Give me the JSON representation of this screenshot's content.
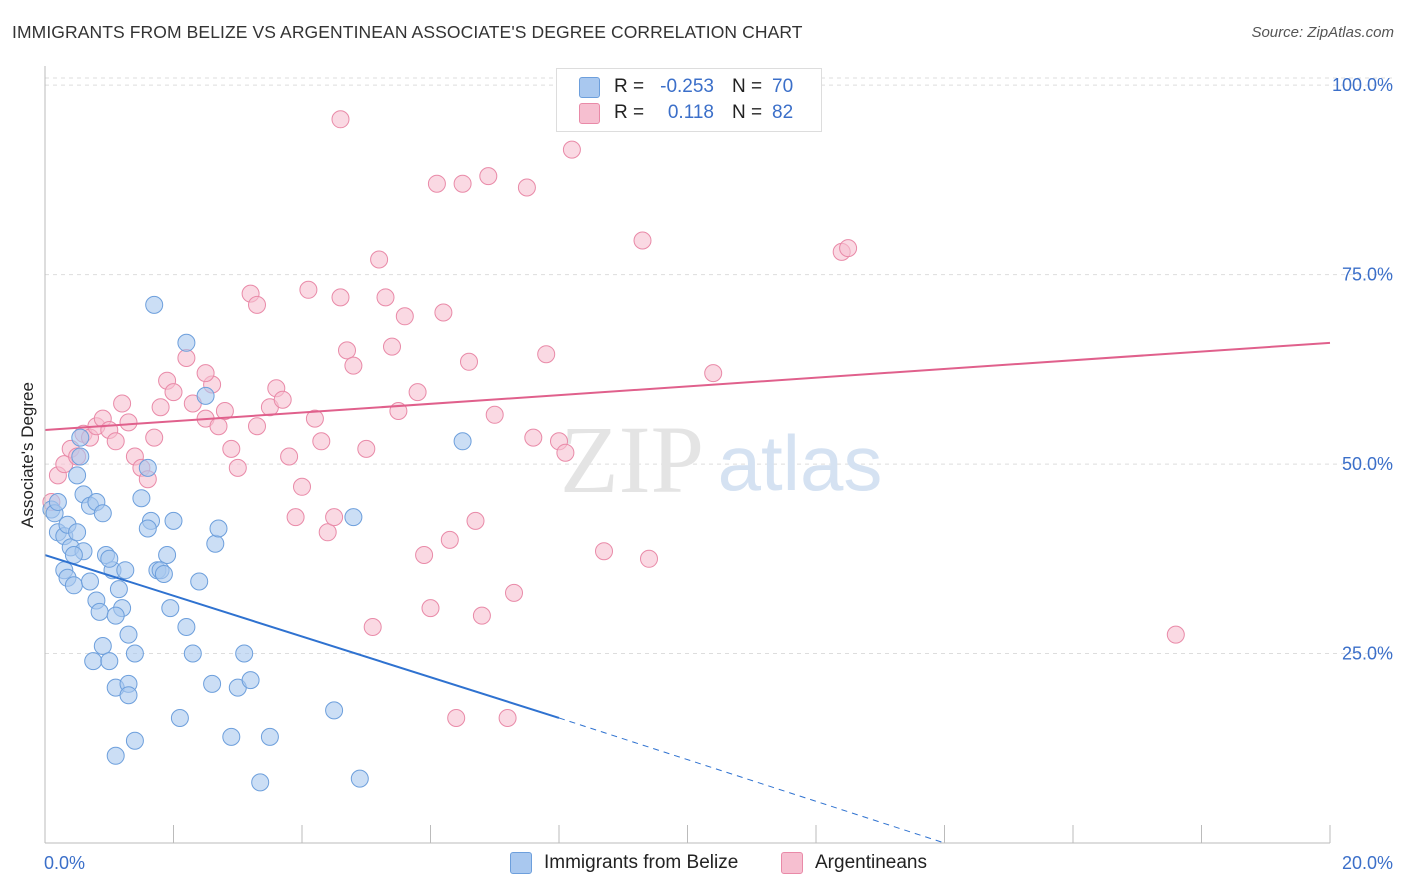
{
  "title": "IMMIGRANTS FROM BELIZE VS ARGENTINEAN ASSOCIATE'S DEGREE CORRELATION CHART",
  "source": "Source: ZipAtlas.com",
  "watermark": {
    "zip": "ZIP",
    "atlas": "atlas"
  },
  "legend_top": {
    "rows": [
      {
        "r_label": "R =",
        "r_value": "-0.253",
        "n_label": "N =",
        "n_value": "70"
      },
      {
        "r_label": "R =",
        "r_value": "0.118",
        "n_label": "N =",
        "n_value": "82"
      }
    ]
  },
  "legend_bottom": [
    "Immigrants from Belize",
    "Argentineans"
  ],
  "colors": {
    "blue_fill": "#a9c8ef",
    "blue_stroke": "#6d9fdc",
    "blue_line": "#2f72d0",
    "pink_fill": "#f6bfd0",
    "pink_stroke": "#e98aa8",
    "pink_line": "#e0608c",
    "tick_label": "#3b6fc9",
    "grid": "#dddddd"
  },
  "chart_data": {
    "type": "scatter",
    "title": "IMMIGRANTS FROM BELIZE VS ARGENTINEAN ASSOCIATE'S DEGREE CORRELATION CHART",
    "xlabel": "",
    "ylabel": "Associate's Degree",
    "xlim": [
      0,
      20
    ],
    "ylim": [
      0,
      102
    ],
    "x_tick_labels": [
      "0.0%",
      "20.0%"
    ],
    "y_ticks": [
      25,
      50,
      75,
      100
    ],
    "y_tick_labels": [
      "25.0%",
      "50.0%",
      "75.0%",
      "100.0%"
    ],
    "grid": true,
    "series": [
      {
        "name": "Immigrants from Belize",
        "color": "#a9c8ef",
        "R": -0.253,
        "N": 70,
        "trend": {
          "x0": 0,
          "y0": 38,
          "x1": 8,
          "y1": 16.5,
          "dash_to_x": 14,
          "dash_to_y": 0
        },
        "points": [
          [
            0.1,
            44
          ],
          [
            0.15,
            43.5
          ],
          [
            0.2,
            41
          ],
          [
            0.3,
            40.5
          ],
          [
            0.35,
            42
          ],
          [
            0.4,
            39
          ],
          [
            0.5,
            41
          ],
          [
            0.6,
            38.5
          ],
          [
            0.2,
            45
          ],
          [
            0.3,
            36
          ],
          [
            0.35,
            35
          ],
          [
            0.45,
            34
          ],
          [
            0.5,
            48.5
          ],
          [
            0.6,
            46
          ],
          [
            0.7,
            44.5
          ],
          [
            0.8,
            45
          ],
          [
            0.9,
            43.5
          ],
          [
            0.55,
            53.5
          ],
          [
            0.7,
            34.5
          ],
          [
            0.8,
            32
          ],
          [
            0.85,
            30.5
          ],
          [
            0.75,
            24
          ],
          [
            0.9,
            26
          ],
          [
            1.0,
            24
          ],
          [
            1.1,
            20.5
          ],
          [
            0.95,
            38
          ],
          [
            1.05,
            36
          ],
          [
            1.15,
            33.5
          ],
          [
            1.2,
            31
          ],
          [
            1.1,
            30
          ],
          [
            1.3,
            27.5
          ],
          [
            1.0,
            37.5
          ],
          [
            1.25,
            36
          ],
          [
            1.3,
            21
          ],
          [
            1.4,
            25
          ],
          [
            1.5,
            45.5
          ],
          [
            1.6,
            49.5
          ],
          [
            1.1,
            11.5
          ],
          [
            1.4,
            13.5
          ],
          [
            1.7,
            71
          ],
          [
            1.65,
            42.5
          ],
          [
            1.75,
            36
          ],
          [
            1.8,
            36
          ],
          [
            1.9,
            38
          ],
          [
            2.0,
            42.5
          ],
          [
            2.1,
            16.5
          ],
          [
            2.2,
            28.5
          ],
          [
            2.3,
            25
          ],
          [
            2.4,
            34.5
          ],
          [
            2.5,
            59
          ],
          [
            2.6,
            21
          ],
          [
            2.65,
            39.5
          ],
          [
            2.7,
            41.5
          ],
          [
            2.9,
            14
          ],
          [
            3.0,
            20.5
          ],
          [
            3.1,
            25
          ],
          [
            3.2,
            21.5
          ],
          [
            3.35,
            8
          ],
          [
            3.5,
            14
          ],
          [
            4.5,
            17.5
          ],
          [
            4.9,
            8.5
          ],
          [
            4.8,
            43
          ],
          [
            6.5,
            53
          ],
          [
            2.2,
            66
          ],
          [
            1.6,
            41.5
          ],
          [
            1.85,
            35.5
          ],
          [
            1.3,
            19.5
          ],
          [
            0.55,
            51
          ],
          [
            0.45,
            38
          ],
          [
            1.95,
            31
          ]
        ]
      },
      {
        "name": "Argentineans",
        "color": "#f6bfd0",
        "R": 0.118,
        "N": 82,
        "trend": {
          "x0": 0,
          "y0": 54.5,
          "x1": 20,
          "y1": 66
        },
        "points": [
          [
            0.1,
            45
          ],
          [
            0.2,
            48.5
          ],
          [
            0.3,
            50
          ],
          [
            0.4,
            52
          ],
          [
            0.5,
            51
          ],
          [
            0.6,
            54
          ],
          [
            0.7,
            53.5
          ],
          [
            0.8,
            55
          ],
          [
            0.9,
            56
          ],
          [
            1.0,
            54.5
          ],
          [
            1.1,
            53
          ],
          [
            1.2,
            58
          ],
          [
            1.3,
            55.5
          ],
          [
            1.4,
            51
          ],
          [
            1.5,
            49.5
          ],
          [
            1.6,
            48
          ],
          [
            1.7,
            53.5
          ],
          [
            1.8,
            57.5
          ],
          [
            1.9,
            61
          ],
          [
            2.0,
            59.5
          ],
          [
            2.2,
            64
          ],
          [
            2.3,
            58
          ],
          [
            2.5,
            56
          ],
          [
            2.6,
            60.5
          ],
          [
            2.7,
            55
          ],
          [
            2.8,
            57
          ],
          [
            2.9,
            52
          ],
          [
            3.0,
            49.5
          ],
          [
            3.2,
            72.5
          ],
          [
            3.3,
            71
          ],
          [
            3.5,
            57.5
          ],
          [
            3.6,
            60
          ],
          [
            3.7,
            58.5
          ],
          [
            3.8,
            51
          ],
          [
            3.9,
            43
          ],
          [
            4.0,
            47
          ],
          [
            4.1,
            73
          ],
          [
            4.2,
            56
          ],
          [
            4.3,
            53
          ],
          [
            4.4,
            41
          ],
          [
            4.5,
            43
          ],
          [
            4.6,
            72
          ],
          [
            4.7,
            65
          ],
          [
            4.8,
            63
          ],
          [
            5.0,
            52
          ],
          [
            5.1,
            28.5
          ],
          [
            5.2,
            77
          ],
          [
            5.3,
            72
          ],
          [
            5.4,
            65.5
          ],
          [
            5.5,
            57
          ],
          [
            5.6,
            69.5
          ],
          [
            5.8,
            59.5
          ],
          [
            5.9,
            38
          ],
          [
            6.0,
            31
          ],
          [
            6.1,
            87
          ],
          [
            6.2,
            70
          ],
          [
            6.3,
            40
          ],
          [
            6.5,
            87
          ],
          [
            6.6,
            63.5
          ],
          [
            6.7,
            42.5
          ],
          [
            6.8,
            30
          ],
          [
            6.9,
            88
          ],
          [
            7.0,
            56.5
          ],
          [
            7.2,
            16.5
          ],
          [
            7.3,
            33
          ],
          [
            7.5,
            86.5
          ],
          [
            7.6,
            53.5
          ],
          [
            7.8,
            64.5
          ],
          [
            8.0,
            53
          ],
          [
            8.1,
            51.5
          ],
          [
            8.2,
            91.5
          ],
          [
            8.7,
            38.5
          ],
          [
            9.3,
            79.5
          ],
          [
            9.4,
            37.5
          ],
          [
            10.4,
            62
          ],
          [
            12.4,
            78
          ],
          [
            12.5,
            78.5
          ],
          [
            17.6,
            27.5
          ],
          [
            6.4,
            16.5
          ],
          [
            4.6,
            95.5
          ],
          [
            2.5,
            62
          ],
          [
            3.3,
            55
          ]
        ]
      }
    ]
  }
}
